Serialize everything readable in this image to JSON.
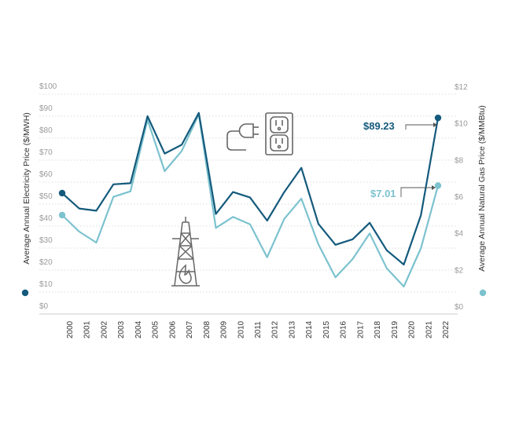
{
  "chart_data": {
    "type": "line",
    "title": "",
    "x": [
      "2000",
      "2001",
      "2002",
      "2003",
      "2004",
      "2005",
      "2006",
      "2007",
      "2008",
      "2009",
      "2010",
      "2011",
      "2012",
      "2013",
      "2014",
      "2015",
      "2016",
      "2017",
      "2018",
      "2019",
      "2020",
      "2021",
      "2022"
    ],
    "ylabel_left": "Average Annual Electricity Price ($/MWH)",
    "ylabel_right": "Average Annual Natural Gas Price ($/MMBtu)",
    "ylim_left": [
      0,
      100
    ],
    "ylim_right": [
      0,
      12
    ],
    "yticks_left": [
      "$0",
      "$10",
      "$20",
      "$30",
      "$40",
      "$50",
      "$60",
      "$70",
      "$80",
      "$90",
      "$100"
    ],
    "yticks_right": [
      "$0",
      "$2",
      "$4",
      "$6",
      "$8",
      "$10",
      "$12"
    ],
    "grid": "horizontal dotted",
    "series": [
      {
        "name": "",
        "axis": "left",
        "color": "#145a7c",
        "values": [
          55,
          48,
          47,
          59,
          59.5,
          90,
          73,
          77,
          91.5,
          45.5,
          55.5,
          53,
          42.5,
          55.5,
          66.5,
          41,
          31.5,
          34,
          41.5,
          29,
          22.5,
          45,
          89.23
        ]
      },
      {
        "name": "",
        "axis": "right",
        "color": "#7cc2cf",
        "values": [
          5.4,
          4.5,
          3.9,
          6.4,
          6.7,
          10.6,
          7.8,
          8.9,
          10.9,
          4.7,
          5.3,
          4.9,
          3.1,
          5.2,
          6.3,
          3.8,
          2.0,
          3.0,
          4.4,
          2.5,
          1.5,
          3.6,
          7.01
        ]
      }
    ],
    "annotations": [
      {
        "label": "$89.23",
        "series": 0,
        "x": "2022",
        "color": "#145a7c"
      },
      {
        "label": "$7.01",
        "series": 1,
        "x": "2022",
        "color": "#7cc2cf"
      }
    ],
    "icons": [
      "electric-plug-outlet-icon",
      "gas-derrick-flame-icon"
    ]
  }
}
